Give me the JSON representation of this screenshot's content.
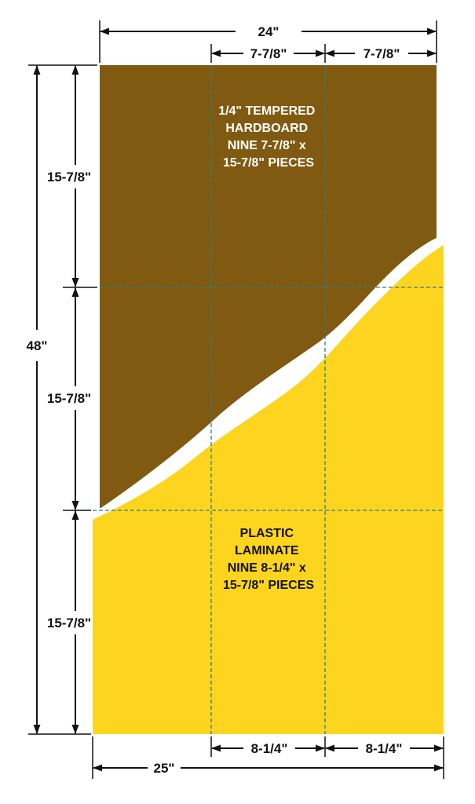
{
  "colors": {
    "hardboard": "#7f5a10",
    "laminate": "#fdd51f",
    "cut_line": "#2a7f8c",
    "hardboard_text": "#ffffff",
    "laminate_text": "#111111",
    "dimension_line": "#111111"
  },
  "hardboard": {
    "label_lines": [
      "1/4\" TEMPERED",
      "HARDBOARD",
      "NINE 7-7/8\" x",
      "15-7/8\" PIECES"
    ]
  },
  "laminate": {
    "label_lines": [
      "PLASTIC",
      "LAMINATE",
      "NINE 8-1/4\" x",
      "15-7/8\" PIECES"
    ]
  },
  "dimensions": {
    "top_overall": "24\"",
    "top_piece_1": "7-7/8\"",
    "top_piece_2": "7-7/8\"",
    "left_overall": "48\"",
    "left_row_1": "15-7/8\"",
    "left_row_2": "15-7/8\"",
    "left_row_3": "15-7/8\"",
    "bottom_overall": "25\"",
    "bottom_piece_1": "8-1/4\"",
    "bottom_piece_2": "8-1/4\""
  }
}
